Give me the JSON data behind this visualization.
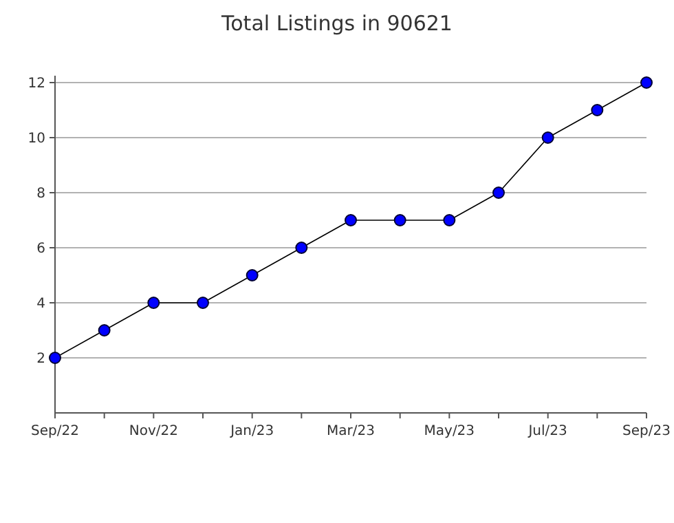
{
  "chart_data": {
    "type": "line",
    "title": "Total Listings in 90621",
    "categories": [
      "Sep/22",
      null,
      "Nov/22",
      null,
      "Jan/23",
      null,
      "Mar/23",
      null,
      "May/23",
      null,
      "Jul/23",
      null,
      "Sep/23"
    ],
    "series": [
      {
        "color": "#0000ff",
        "values": [
          2,
          3,
          4,
          4,
          5,
          6,
          7,
          7,
          7,
          8,
          10,
          11,
          12
        ]
      }
    ],
    "ylim": [
      0,
      12
    ],
    "yticks": [
      2,
      4,
      6,
      8,
      10,
      12
    ],
    "grid": "y",
    "marker": "circle",
    "line_style": "solid"
  }
}
